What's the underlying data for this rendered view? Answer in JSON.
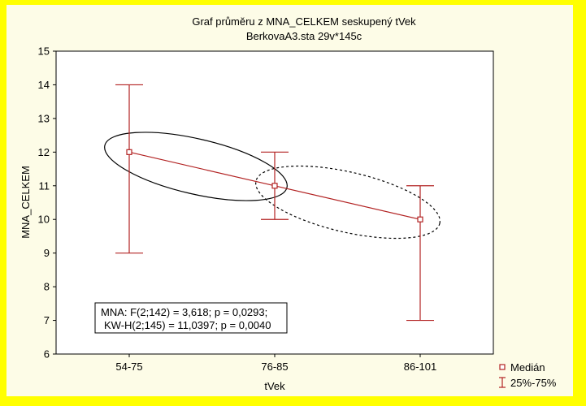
{
  "chart_data": {
    "type": "line",
    "title": "Graf průměru z MNA_CELKEM seskupený tVek",
    "subtitle": "BerkovaA3.sta 29v*145c",
    "xlabel": "tVek",
    "ylabel": "MNA_CELKEM",
    "categories": [
      "54-75",
      "76-85",
      "86-101"
    ],
    "ylim": [
      6,
      15
    ],
    "yticks": [
      "6",
      "7",
      "8",
      "9",
      "10",
      "11",
      "12",
      "13",
      "14",
      "15"
    ],
    "series": [
      {
        "name": "Medián",
        "values": [
          12,
          11,
          10
        ],
        "q25": [
          9,
          10,
          7
        ],
        "q75": [
          14,
          12,
          11
        ]
      }
    ],
    "error_bar_label": "25%-75%",
    "color": "#b22222",
    "grid": false,
    "legend_position": "bottom-right",
    "annotation": {
      "line1": "MNA:   F(2;142) = 3,618; p = 0,0293;",
      "line2": "KW-H(2;145) = 11,0397; p = 0,0040"
    }
  }
}
